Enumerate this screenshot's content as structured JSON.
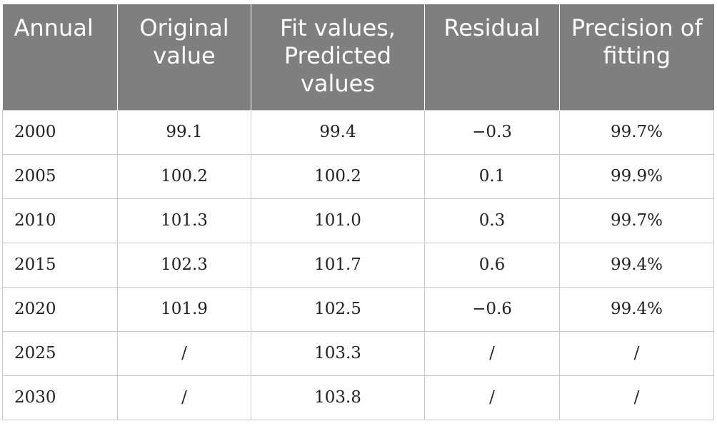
{
  "chart_data": {
    "type": "table",
    "columns": [
      "Annual",
      "Original value",
      "Fit values, Predicted values",
      "Residual",
      "Precision of fitting"
    ],
    "rows": [
      [
        "2000",
        "99.1",
        "99.4",
        "−0.3",
        "99.7%"
      ],
      [
        "2005",
        "100.2",
        "100.2",
        "0.1",
        "99.9%"
      ],
      [
        "2010",
        "101.3",
        "101.0",
        "0.3",
        "99.7%"
      ],
      [
        "2015",
        "102.3",
        "101.7",
        "0.6",
        "99.4%"
      ],
      [
        "2020",
        "101.9",
        "102.5",
        "−0.6",
        "99.4%"
      ],
      [
        "2025",
        "/",
        "103.3",
        "/",
        "/"
      ],
      [
        "2030",
        "/",
        "103.8",
        "/",
        "/"
      ]
    ]
  },
  "colors": {
    "header_bg": "#7f7f7f",
    "header_text": "#ffffff",
    "grid": "#c9c9c9",
    "body_text": "#222222"
  }
}
